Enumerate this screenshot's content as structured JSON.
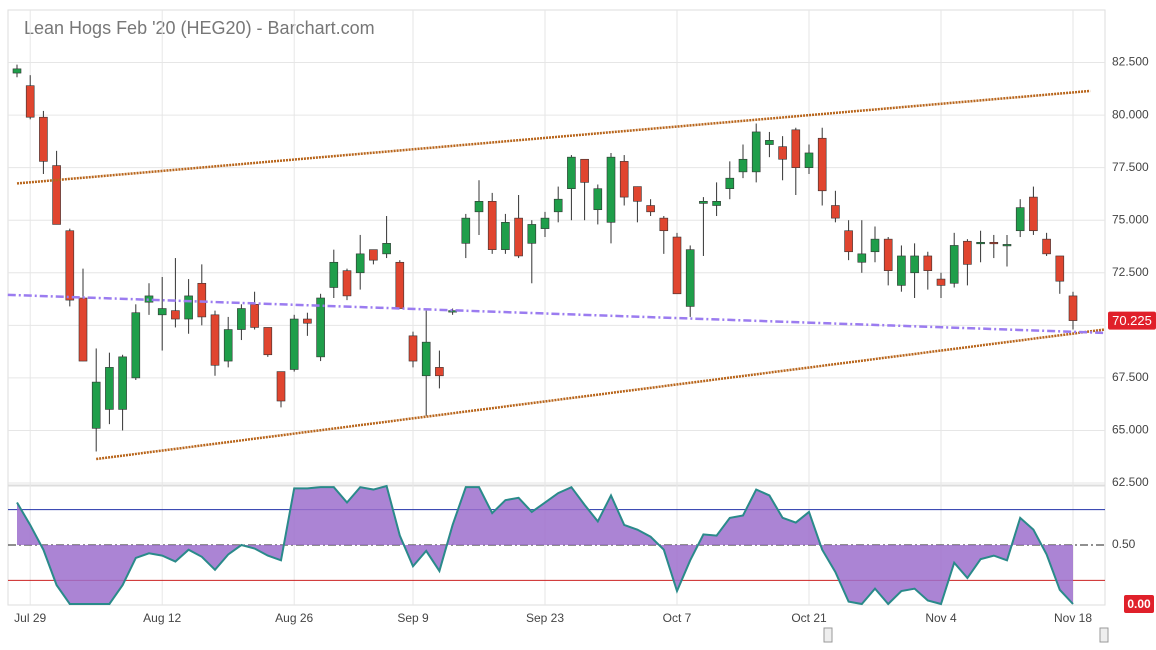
{
  "chart_data": [
    {
      "type": "candlestick",
      "title": "Lean Hogs Feb '20 (HEG20) - Barchart.com",
      "categories": [
        null,
        "Jul 29",
        null,
        null,
        null,
        null,
        null,
        null,
        null,
        null,
        null,
        "Aug 12",
        null,
        null,
        null,
        null,
        null,
        null,
        null,
        null,
        null,
        "Aug 26",
        null,
        null,
        null,
        null,
        null,
        null,
        null,
        null,
        "Sep 9",
        null,
        null,
        null,
        null,
        null,
        null,
        null,
        null,
        null,
        "Sep 23",
        null,
        null,
        null,
        null,
        null,
        null,
        null,
        null,
        null,
        "Oct 7",
        null,
        null,
        null,
        null,
        null,
        null,
        null,
        null,
        null,
        "Oct 21",
        null,
        null,
        null,
        null,
        null,
        null,
        null,
        null,
        null,
        "Nov 4",
        null,
        null,
        null,
        null,
        null,
        null,
        null,
        null,
        null,
        "Nov 18"
      ],
      "open": [
        82.0,
        81.4,
        79.9,
        77.6,
        74.5,
        71.3,
        65.1,
        66.0,
        66.0,
        67.5,
        71.1,
        70.5,
        70.7,
        70.3,
        72.0,
        70.5,
        68.3,
        69.8,
        71.0,
        69.9,
        67.8,
        67.9,
        70.3,
        68.5,
        71.8,
        72.6,
        72.5,
        73.6,
        73.4,
        73.0,
        69.5,
        67.6,
        68.0,
        70.65,
        73.9,
        75.4,
        75.9,
        73.6,
        75.1,
        73.9,
        74.6,
        75.4,
        76.5,
        77.9,
        75.5,
        74.9,
        77.8,
        76.6,
        75.7,
        75.1,
        74.2,
        70.9,
        75.8,
        75.7,
        76.5,
        77.3,
        77.3,
        78.6,
        78.5,
        79.3,
        77.5,
        78.9,
        75.7,
        74.5,
        73.0,
        73.5,
        74.1,
        71.9,
        72.5,
        73.3,
        72.2,
        72.0,
        74.0,
        73.9,
        73.95,
        73.8,
        74.5,
        76.1,
        74.1,
        73.3,
        71.4
      ],
      "high": [
        82.4,
        81.9,
        80.2,
        78.3,
        74.6,
        72.7,
        68.9,
        68.7,
        68.6,
        71.0,
        72.0,
        72.3,
        73.2,
        72.2,
        72.9,
        70.7,
        70.4,
        71.0,
        71.6,
        69.9,
        67.8,
        70.5,
        70.6,
        71.5,
        73.6,
        72.7,
        74.3,
        73.6,
        75.2,
        73.1,
        69.7,
        70.7,
        68.8,
        70.8,
        75.3,
        76.9,
        76.3,
        75.3,
        76.2,
        75.0,
        75.4,
        76.6,
        78.1,
        77.9,
        76.7,
        78.2,
        78.1,
        76.6,
        76.0,
        75.2,
        74.4,
        73.8,
        76.1,
        76.8,
        77.8,
        78.6,
        79.6,
        79.2,
        79.0,
        79.4,
        78.6,
        79.4,
        76.4,
        75.0,
        75.0,
        74.7,
        74.2,
        73.8,
        73.9,
        73.5,
        72.5,
        74.4,
        74.1,
        74.5,
        74.3,
        74.3,
        76.0,
        76.6,
        74.4,
        73.3,
        71.6
      ],
      "low": [
        81.8,
        79.8,
        77.2,
        74.8,
        70.9,
        68.3,
        64.0,
        65.3,
        65.0,
        67.4,
        70.5,
        68.8,
        69.9,
        69.6,
        70.0,
        67.6,
        68.0,
        69.3,
        69.8,
        68.5,
        66.1,
        67.8,
        69.5,
        68.3,
        71.3,
        71.2,
        71.7,
        72.9,
        73.2,
        70.8,
        68.0,
        65.7,
        67.0,
        70.5,
        73.2,
        74.3,
        73.4,
        73.4,
        73.2,
        72.0,
        74.2,
        74.9,
        75.0,
        75.0,
        74.8,
        73.9,
        75.7,
        74.9,
        75.2,
        73.4,
        71.5,
        70.4,
        73.3,
        75.2,
        76.0,
        77.0,
        76.8,
        78.0,
        76.9,
        76.2,
        77.2,
        75.7,
        74.9,
        73.1,
        72.5,
        73.0,
        71.9,
        71.6,
        71.3,
        71.7,
        71.3,
        71.8,
        71.9,
        73.0,
        73.2,
        72.8,
        74.2,
        74.3,
        73.3,
        71.5,
        69.8
      ],
      "close": [
        82.2,
        79.9,
        77.8,
        74.8,
        71.2,
        68.3,
        67.3,
        68.0,
        68.5,
        70.6,
        71.4,
        70.8,
        70.3,
        71.4,
        70.4,
        68.1,
        69.8,
        70.8,
        69.9,
        68.6,
        66.4,
        70.3,
        70.1,
        71.3,
        73.0,
        71.4,
        73.4,
        73.1,
        73.9,
        70.8,
        68.3,
        69.2,
        67.6,
        70.7,
        75.1,
        75.9,
        73.6,
        74.9,
        73.3,
        74.8,
        75.1,
        76.0,
        78.0,
        76.8,
        76.5,
        78.0,
        76.1,
        75.9,
        75.4,
        74.5,
        71.5,
        73.6,
        75.9,
        75.9,
        77.0,
        77.9,
        79.2,
        78.8,
        77.9,
        77.5,
        78.2,
        76.4,
        75.1,
        73.5,
        73.4,
        74.1,
        72.6,
        73.3,
        73.3,
        72.6,
        71.9,
        73.8,
        72.9,
        73.95,
        73.9,
        73.85,
        75.6,
        74.5,
        73.4,
        72.1,
        70.225
      ],
      "up_color": "#1f9e4a",
      "down_color": "#e0452f",
      "ylim": [
        62.5,
        85.0
      ],
      "yticks": [
        {
          "value": 62.5,
          "label": "62.500"
        },
        {
          "value": 65,
          "label": "65.000"
        },
        {
          "value": 67.5,
          "label": "67.500"
        },
        {
          "value": 70,
          "label": "70.000"
        },
        {
          "value": 72.5,
          "label": "72.500"
        },
        {
          "value": 75,
          "label": "75.000"
        },
        {
          "value": 77.5,
          "label": "77.500"
        },
        {
          "value": 80,
          "label": "80.000"
        },
        {
          "value": 82.5,
          "label": "82.500"
        }
      ],
      "grid": true,
      "trendlines": [
        {
          "start": [
            0,
            76.75
          ],
          "end": [
            81.3,
            81.15
          ],
          "color": "#b8651b",
          "style": "dotted"
        },
        {
          "start": [
            6,
            63.64
          ],
          "end": [
            82.4,
            69.8
          ],
          "color": "#b8651b",
          "style": "dotted"
        },
        {
          "start": [
            -0.7,
            71.45
          ],
          "end": [
            82.4,
            69.64
          ],
          "color": "#9b7cf0",
          "style": "dashdot"
        }
      ],
      "last_label_color": "#e0202a"
    },
    {
      "type": "line",
      "values": [
        0.86,
        0.67,
        0.46,
        0.16,
        0,
        0,
        0,
        0,
        0.16,
        0.39,
        0.43,
        0.41,
        0.36,
        0.46,
        0.4,
        0.29,
        0.42,
        0.5,
        0.47,
        0.41,
        0.37,
        0.98,
        0.98,
        0.99,
        0.99,
        0.86,
        0.99,
        0.97,
        1.0,
        0.58,
        0.32,
        0.45,
        0.28,
        0.67,
        0.99,
        0.99,
        0.77,
        0.88,
        0.9,
        0.78,
        0.86,
        0.94,
        0.99,
        0.84,
        0.7,
        0.92,
        0.67,
        0.63,
        0.57,
        0.46,
        0.11,
        0.37,
        0.59,
        0.58,
        0.73,
        0.75,
        0.97,
        0.92,
        0.73,
        0.69,
        0.78,
        0.46,
        0.27,
        0.02,
        0,
        0.13,
        0,
        0.11,
        0.13,
        0.03,
        0,
        0.35,
        0.22,
        0.38,
        0.41,
        0.37,
        0.73,
        0.63,
        0.42,
        0.12,
        0
      ],
      "value_labels": {
        "80": "0.00"
      },
      "color": "#2a8a8a",
      "fill": "#9c6fcc",
      "ylim": [
        0,
        1
      ],
      "yticks": [
        {
          "value": 0.5,
          "label": "0.50"
        }
      ],
      "levels": [
        {
          "value": 0.8,
          "color": "#2233aa"
        },
        {
          "value": 0.2,
          "color": "#cc2222"
        },
        {
          "value": 0.5,
          "color": "#222222",
          "style": "dashdot"
        }
      ],
      "last_label_color": "#e0202a"
    }
  ]
}
